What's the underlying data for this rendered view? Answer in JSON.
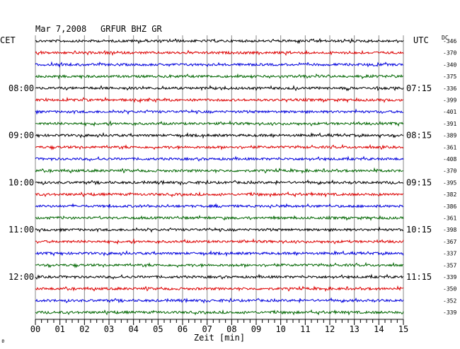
{
  "header": {
    "date": "Mar 7,2008",
    "station": "GRFUR BHZ GR",
    "left_zone": "CET",
    "right_zone": "UTC",
    "dc_label": "DC"
  },
  "footer": {
    "xlabel": "Zeit [min]",
    "corner_mark": "ʚ"
  },
  "colors": {
    "trace_cycle": [
      "#000000",
      "#dd0000",
      "#0000dd",
      "#006600"
    ],
    "grid": "#888888",
    "axis": "#000000"
  },
  "chart_data": {
    "type": "line",
    "title": "Mar 7,2008   GRFUR BHZ GR",
    "xlabel": "Zeit [min]",
    "xlim": [
      0,
      15
    ],
    "x_ticks": [
      "00",
      "01",
      "02",
      "03",
      "04",
      "05",
      "06",
      "07",
      "08",
      "09",
      "10",
      "11",
      "12",
      "13",
      "14",
      "15"
    ],
    "minor_ticks_per_minute": 4,
    "rows_per_hour": 4,
    "grid": true,
    "cet_labels": [
      "08:00",
      "09:00",
      "10:00",
      "11:00",
      "12:00"
    ],
    "utc_labels": [
      "07:15",
      "08:15",
      "09:15",
      "10:15",
      "11:15"
    ],
    "dc_offsets": [
      -346,
      -370,
      -340,
      -375,
      -336,
      -399,
      -401,
      -391,
      -389,
      -361,
      -408,
      -370,
      -395,
      -382,
      -386,
      -361,
      -398,
      -367,
      -337,
      -357,
      -339,
      -350,
      -352,
      -339
    ],
    "trace_count": 24
  }
}
